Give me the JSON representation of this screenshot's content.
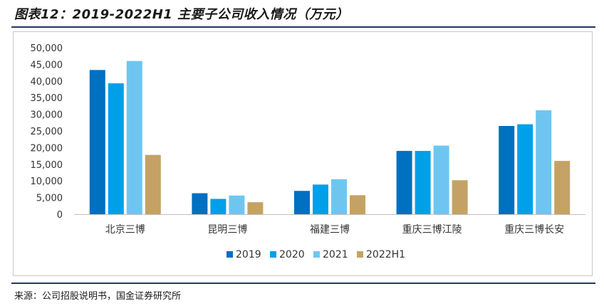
{
  "title": "图表12：2019-2022H1 主要子公司收入情况（万元）",
  "source": "来源：公司招股说明书，国金证券研究所",
  "colors": {
    "s2019": "#0070c0",
    "s2020": "#00a0e9",
    "s2021": "#6ec6f0",
    "s2022H1": "#c4a265",
    "rule": "#1f3864"
  },
  "chart_data": {
    "type": "bar",
    "categories": [
      "北京三博",
      "昆明三博",
      "福建三博",
      "重庆三博江陵",
      "重庆三博长安"
    ],
    "series": [
      {
        "name": "2019",
        "values": [
          43300,
          6300,
          7000,
          19000,
          26500
        ]
      },
      {
        "name": "2020",
        "values": [
          39300,
          4600,
          8900,
          19000,
          27000
        ]
      },
      {
        "name": "2021",
        "values": [
          46000,
          5600,
          10500,
          20600,
          31200
        ]
      },
      {
        "name": "2022H1",
        "values": [
          17800,
          3600,
          5700,
          10200,
          16000
        ]
      }
    ],
    "ylim": [
      0,
      50000
    ],
    "yticks": [
      "0",
      "5,000",
      "10,000",
      "15,000",
      "20,000",
      "25,000",
      "30,000",
      "35,000",
      "40,000",
      "45,000",
      "50,000"
    ],
    "legend_position": "bottom",
    "grid": false
  }
}
